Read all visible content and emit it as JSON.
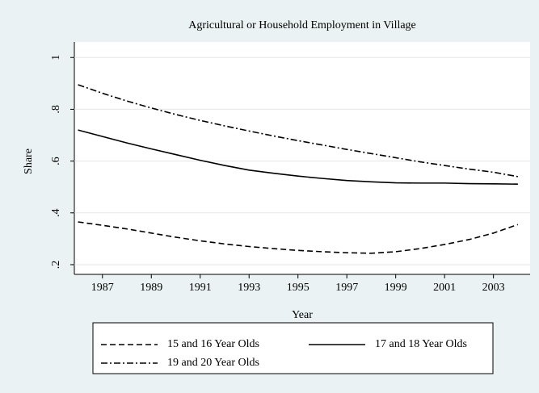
{
  "chart_data": {
    "type": "line",
    "title": "Agricultural or Household Employment in Village",
    "x_label": "Year",
    "y_label": "Share",
    "x": [
      1986,
      1987,
      1988,
      1989,
      1990,
      1991,
      1992,
      1993,
      1994,
      1995,
      1996,
      1997,
      1998,
      1999,
      2000,
      2001,
      2002,
      2003,
      2004
    ],
    "series": [
      {
        "name": "15 and 16 Year Olds",
        "color": "#000000",
        "linestyle": "dashed",
        "values": [
          0.365,
          0.352,
          0.338,
          0.322,
          0.306,
          0.292,
          0.28,
          0.27,
          0.262,
          0.255,
          0.25,
          0.246,
          0.244,
          0.25,
          0.262,
          0.278,
          0.297,
          0.322,
          0.355
        ]
      },
      {
        "name": "17 and 18 Year Olds",
        "color": "#000000",
        "linestyle": "solid",
        "values": [
          0.72,
          0.695,
          0.67,
          0.647,
          0.625,
          0.603,
          0.583,
          0.565,
          0.553,
          0.542,
          0.533,
          0.525,
          0.52,
          0.516,
          0.515,
          0.515,
          0.513,
          0.512,
          0.511
        ]
      },
      {
        "name": "19 and 20 Year Olds",
        "color": "#000000",
        "linestyle": "dashdot",
        "values": [
          0.895,
          0.862,
          0.832,
          0.805,
          0.78,
          0.757,
          0.736,
          0.716,
          0.697,
          0.679,
          0.662,
          0.645,
          0.629,
          0.613,
          0.597,
          0.583,
          0.569,
          0.557,
          0.54
        ]
      }
    ],
    "xlim": [
      1985.85,
      2004.5
    ],
    "xticks": [
      1987,
      1989,
      1991,
      1993,
      1995,
      1997,
      1999,
      2001,
      2003
    ],
    "ylim": [
      0.1625,
      1.06
    ],
    "yticks": [
      {
        "value": 0.2,
        "label": ".2"
      },
      {
        "value": 0.4,
        "label": ".4"
      },
      {
        "value": 0.6,
        "label": ".6"
      },
      {
        "value": 0.8,
        "label": ".8"
      },
      1
    ],
    "grid": true,
    "legend": "bottom"
  }
}
